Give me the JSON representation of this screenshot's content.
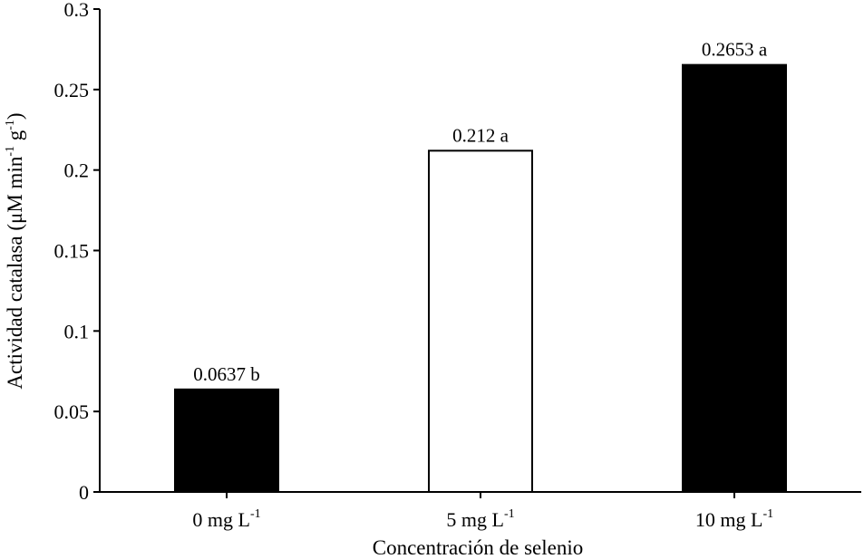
{
  "chart_data": {
    "type": "bar",
    "title": "",
    "xlabel": "Concentración de selenio",
    "ylabel": {
      "main": "Actividad catalasa (μM min",
      "sup1": "-1",
      "middle": " g",
      "sup2": "-1",
      "end": ")"
    },
    "ylim": [
      0,
      0.3
    ],
    "yticks": [
      0,
      0.05,
      0.1,
      0.15,
      0.2,
      0.25,
      0.3
    ],
    "ytick_labels": [
      "0",
      "0.05",
      "0.1",
      "0.15",
      "0.2",
      "0.25",
      "0.3"
    ],
    "categories": [
      {
        "base": "0 mg L",
        "sup": "-1"
      },
      {
        "base": "5 mg L",
        "sup": "-1"
      },
      {
        "base": "10 mg L",
        "sup": "-1"
      }
    ],
    "values": [
      0.0637,
      0.212,
      0.2653
    ],
    "data_labels": [
      "0.0637 b",
      "0.212 a",
      "0.2653 a"
    ],
    "bar_fills": [
      "#000000",
      "#ffffff",
      "#000000"
    ],
    "bar_stroke": "#000000",
    "grid": false,
    "legend": false
  }
}
